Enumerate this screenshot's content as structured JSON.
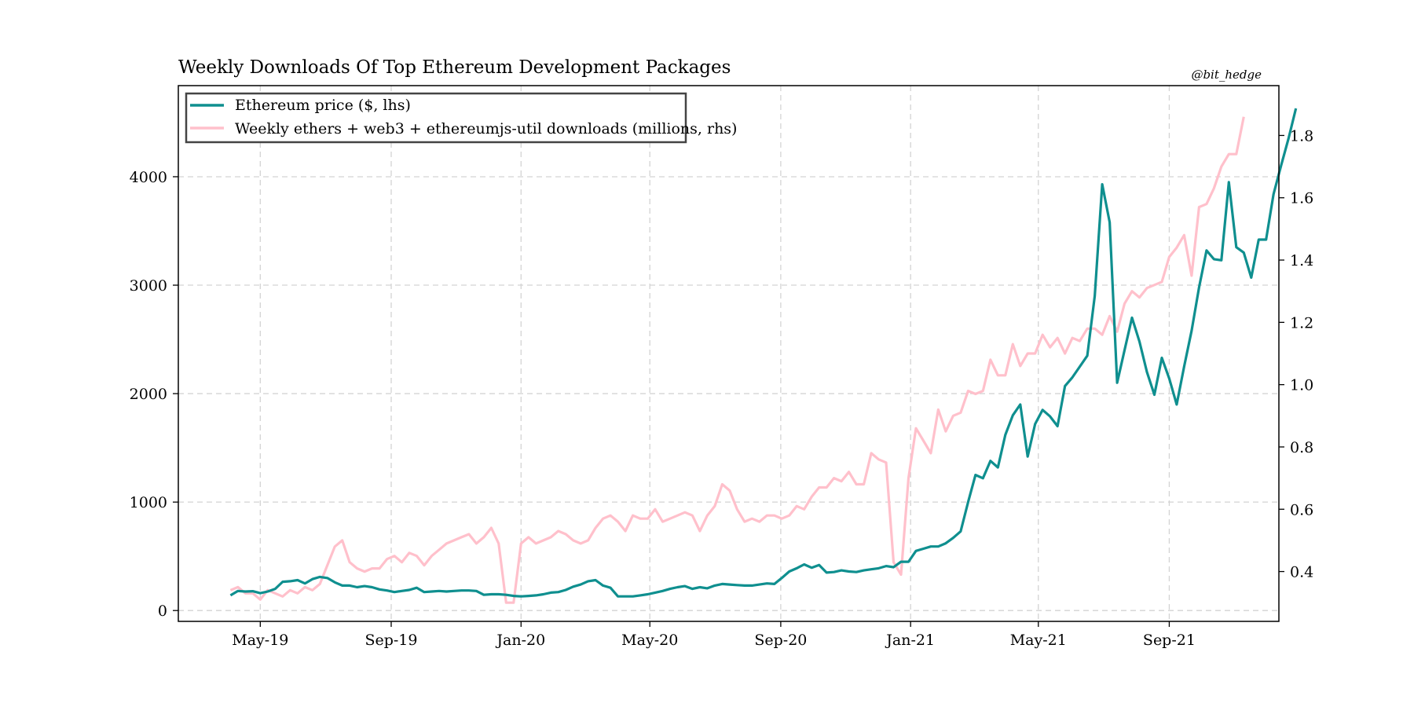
{
  "colors": {
    "price": "#0f8f8f",
    "downloads": "#ffc0cb",
    "grid": "#d3d3d3",
    "frame": "#000000"
  },
  "chart_data": {
    "type": "line",
    "title": "Weekly Downloads Of Top Ethereum Development Packages",
    "credit": "@bit_hedge",
    "x_tick_labels": [
      "May-19",
      "Sep-19",
      "Jan-20",
      "May-20",
      "Sep-20",
      "Jan-21",
      "May-21",
      "Sep-21"
    ],
    "x_ticks": [
      "2019-05-01",
      "2019-09-01",
      "2020-01-01",
      "2020-05-01",
      "2020-09-01",
      "2021-01-01",
      "2021-05-01",
      "2021-09-01"
    ],
    "xlim": [
      "2019-02-13",
      "2021-12-13"
    ],
    "y_left": {
      "ticks": [
        0,
        1000,
        2000,
        3000,
        4000
      ],
      "ylim": [
        -100,
        4840
      ]
    },
    "y_right": {
      "ticks": [
        0.4,
        0.6,
        0.8,
        1.0,
        1.2,
        1.4,
        1.6,
        1.8
      ],
      "tick_labels": [
        "0.4",
        "0.6",
        "0.8",
        "1.0",
        "1.2",
        "1.4",
        "1.6",
        "1.8"
      ],
      "ylim": [
        0.24,
        1.96
      ]
    },
    "grid": true,
    "legend_position": "upper left",
    "series": [
      {
        "name": "Ethereum price ($, lhs)",
        "axis": "left",
        "start": "2019-04-03",
        "step_days": 7,
        "values": [
          140,
          180,
          175,
          178,
          160,
          175,
          200,
          265,
          270,
          280,
          250,
          290,
          310,
          300,
          260,
          230,
          230,
          215,
          225,
          215,
          195,
          185,
          170,
          180,
          190,
          210,
          170,
          175,
          180,
          175,
          180,
          185,
          185,
          180,
          145,
          150,
          150,
          145,
          135,
          130,
          135,
          140,
          150,
          165,
          170,
          190,
          220,
          240,
          270,
          280,
          230,
          210,
          130,
          130,
          130,
          140,
          150,
          165,
          180,
          200,
          215,
          225,
          200,
          215,
          205,
          230,
          245,
          240,
          235,
          230,
          230,
          240,
          250,
          245,
          300,
          360,
          390,
          425,
          395,
          420,
          350,
          355,
          370,
          360,
          355,
          370,
          380,
          390,
          410,
          400,
          450,
          450,
          550,
          570,
          590,
          590,
          620,
          670,
          730,
          1000,
          1250,
          1220,
          1380,
          1320,
          1620,
          1800,
          1900,
          1420,
          1720,
          1850,
          1790,
          1700,
          2070,
          2150,
          2250,
          2350,
          2900,
          3930,
          3580,
          2100,
          2400,
          2700,
          2480,
          2200,
          1990,
          2330,
          2140,
          1900,
          2250,
          2580,
          2980,
          3320,
          3240,
          3230,
          3950,
          3350,
          3300,
          3070,
          3420,
          3420,
          3840,
          4100,
          4350,
          4630
        ]
      },
      {
        "name": "Weekly ethers + web3 + ethereumjs-util downloads (millions, rhs)",
        "axis": "right",
        "start": "2019-04-03",
        "step_days": 7,
        "values": [
          0.34,
          0.35,
          0.33,
          0.33,
          0.31,
          0.34,
          0.33,
          0.32,
          0.34,
          0.33,
          0.35,
          0.34,
          0.36,
          0.42,
          0.48,
          0.5,
          0.43,
          0.41,
          0.4,
          0.41,
          0.41,
          0.44,
          0.45,
          0.43,
          0.46,
          0.45,
          0.42,
          0.45,
          0.47,
          0.49,
          0.5,
          0.51,
          0.52,
          0.49,
          0.51,
          0.54,
          0.49,
          0.3,
          0.3,
          0.49,
          0.51,
          0.49,
          0.5,
          0.51,
          0.53,
          0.52,
          0.5,
          0.49,
          0.5,
          0.54,
          0.57,
          0.58,
          0.56,
          0.53,
          0.58,
          0.57,
          0.57,
          0.6,
          0.56,
          0.57,
          0.58,
          0.59,
          0.58,
          0.53,
          0.58,
          0.61,
          0.68,
          0.66,
          0.6,
          0.56,
          0.57,
          0.56,
          0.58,
          0.58,
          0.57,
          0.58,
          0.61,
          0.6,
          0.64,
          0.67,
          0.67,
          0.7,
          0.69,
          0.72,
          0.68,
          0.68,
          0.78,
          0.76,
          0.75,
          0.43,
          0.39,
          0.7,
          0.86,
          0.82,
          0.78,
          0.92,
          0.85,
          0.9,
          0.91,
          0.98,
          0.97,
          0.98,
          1.08,
          1.03,
          1.03,
          1.13,
          1.06,
          1.1,
          1.1,
          1.16,
          1.12,
          1.15,
          1.1,
          1.15,
          1.14,
          1.18,
          1.18,
          1.16,
          1.22,
          1.17,
          1.26,
          1.3,
          1.28,
          1.31,
          1.32,
          1.33,
          1.41,
          1.44,
          1.48,
          1.35,
          1.57,
          1.58,
          1.63,
          1.7,
          1.74,
          1.74,
          1.86
        ]
      }
    ]
  }
}
